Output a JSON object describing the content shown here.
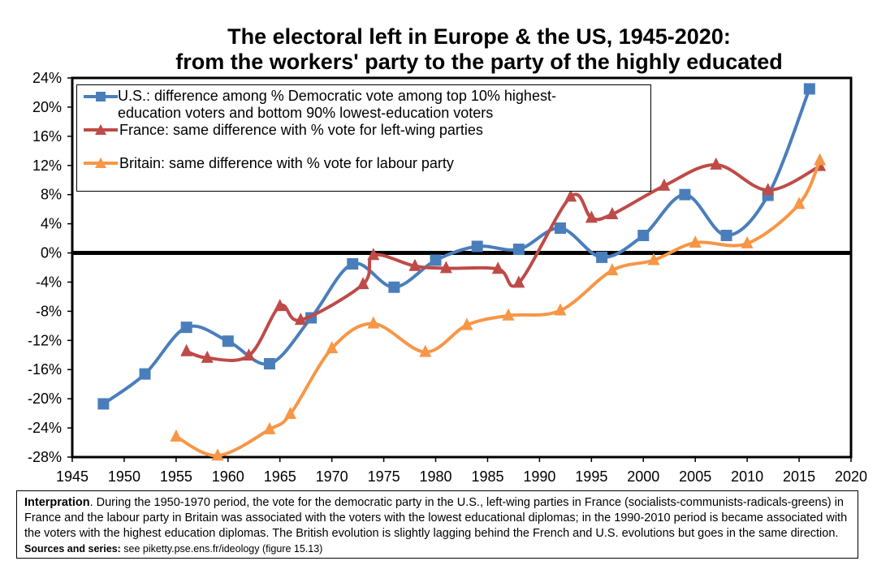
{
  "chart_data": {
    "type": "line",
    "title": [
      "The electoral left in Europe & the US, 1945-2020:",
      "from the workers' party to the party of the highly educated"
    ],
    "xlim": [
      1945,
      2020
    ],
    "ylim": [
      -28,
      24
    ],
    "x_ticks": [
      1945,
      1950,
      1955,
      1960,
      1965,
      1970,
      1975,
      1980,
      1985,
      1990,
      1995,
      2000,
      2005,
      2010,
      2015,
      2020
    ],
    "y_ticks": [
      24,
      20,
      16,
      12,
      8,
      4,
      0,
      -4,
      -8,
      -12,
      -16,
      -20,
      -24,
      -28
    ],
    "y_tick_labels": [
      "24%",
      "20%",
      "16%",
      "12%",
      "8%",
      "4%",
      "0%",
      "-4%",
      "-8%",
      "-12%",
      "-16%",
      "-20%",
      "-24%",
      "-28%"
    ],
    "zero_line": true,
    "legend_position": "top-left inside plot",
    "series": [
      {
        "name": "U.S.: difference among % Democratic vote among top 10% highest-education voters and bottom 90% lowest-education voters",
        "legend_lines": [
          "U.S.: difference among % Democratic vote among top 10% highest-",
          "education voters and bottom 90% lowest-education voters"
        ],
        "color": "#4a7ebb",
        "marker": "square",
        "points": [
          [
            1948,
            -20.7
          ],
          [
            1952,
            -16.6
          ],
          [
            1956,
            -10.2
          ],
          [
            1960,
            -12.1
          ],
          [
            1964,
            -15.2
          ],
          [
            1968,
            -8.9
          ],
          [
            1972,
            -1.5
          ],
          [
            1976,
            -4.7
          ],
          [
            1980,
            -1.0
          ],
          [
            1984,
            0.9
          ],
          [
            1988,
            0.5
          ],
          [
            1992,
            3.4
          ],
          [
            1996,
            -0.6
          ],
          [
            2000,
            2.4
          ],
          [
            2004,
            8.0
          ],
          [
            2008,
            2.4
          ],
          [
            2012,
            7.9
          ],
          [
            2016,
            22.5
          ]
        ]
      },
      {
        "name": "France: same difference with % vote for left-wing parties",
        "legend_lines": [
          "France: same difference with % vote for left-wing parties"
        ],
        "color": "#be4b48",
        "marker": "triangle",
        "points": [
          [
            1956,
            -13.5
          ],
          [
            1958,
            -14.4
          ],
          [
            1962,
            -14.1
          ],
          [
            1965,
            -7.3
          ],
          [
            1967,
            -9.2
          ],
          [
            1973,
            -4.3
          ],
          [
            1974,
            -0.3
          ],
          [
            1978,
            -1.8
          ],
          [
            1981,
            -2.1
          ],
          [
            1986,
            -2.2
          ],
          [
            1988,
            -4.1
          ],
          [
            1993,
            7.7
          ],
          [
            1995,
            4.8
          ],
          [
            1997,
            5.3
          ],
          [
            2002,
            9.2
          ],
          [
            2007,
            12.1
          ],
          [
            2012,
            8.6
          ],
          [
            2017,
            11.9
          ]
        ]
      },
      {
        "name": "Britain: same difference with % vote for labour party",
        "legend_lines": [
          "Britain: same difference with % vote for labour party"
        ],
        "color": "#f79646",
        "marker": "triangle",
        "points": [
          [
            1955,
            -25.2
          ],
          [
            1959,
            -27.8
          ],
          [
            1964,
            -24.2
          ],
          [
            1966,
            -22.1
          ],
          [
            1970,
            -13.1
          ],
          [
            1974,
            -9.7
          ],
          [
            1979,
            -13.6
          ],
          [
            1983,
            -9.9
          ],
          [
            1987,
            -8.6
          ],
          [
            1992,
            -7.9
          ],
          [
            1997,
            -2.4
          ],
          [
            2001,
            -1.0
          ],
          [
            2005,
            1.4
          ],
          [
            2010,
            1.3
          ],
          [
            2015,
            6.7
          ],
          [
            2017,
            12.7
          ]
        ]
      }
    ]
  },
  "note": {
    "label": "Interpration",
    "text": ". During the 1950-1970 period, the vote for the democratic party in the U.S., left-wing parties in France (socialists-communists-radicals-greens) in France and the labour party in Britain was associated with the voters with the lowest educational diplomas; in the 1990-2010 period is became associated with the voters with the highest education diplomas. The British evolution is slightly lagging behind the French and U.S. evolutions but goes in the same direction. ",
    "sources_label": "Sources and series:",
    "sources_text": " see piketty.pse.ens.fr/ideology (figure 15.13)"
  }
}
